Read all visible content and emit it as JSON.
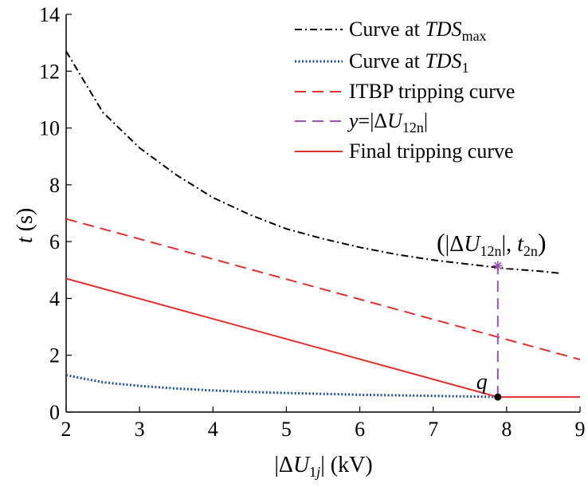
{
  "chart_data": {
    "type": "line",
    "xlabel": "|ΔU1j| (kV)",
    "ylabel": "t (s)",
    "xlim": [
      2,
      9
    ],
    "ylim": [
      0,
      14
    ],
    "x_ticks": [
      "2",
      "3",
      "4",
      "5",
      "6",
      "7",
      "8",
      "9"
    ],
    "y_ticks": [
      "0",
      "2",
      "4",
      "6",
      "8",
      "10",
      "12",
      "14"
    ],
    "grid": false,
    "legend_position": "top-right",
    "series": [
      {
        "name": "Curve at TDSmax",
        "style": "dash-dot",
        "color": "#000000",
        "x": [
          2.0,
          2.5,
          3.0,
          3.5,
          4.0,
          4.5,
          5.0,
          5.5,
          6.0,
          6.5,
          7.0,
          7.5,
          8.0,
          8.5,
          8.75
        ],
        "y": [
          12.7,
          10.55,
          9.3,
          8.35,
          7.55,
          6.95,
          6.45,
          6.1,
          5.8,
          5.55,
          5.35,
          5.2,
          5.05,
          4.95,
          4.88
        ]
      },
      {
        "name": "Curve at TDS1",
        "style": "dotted",
        "color": "#1f4e9c",
        "x": [
          2.0,
          2.5,
          3.0,
          3.5,
          4.0,
          4.5,
          5.0,
          5.5,
          6.0,
          6.5,
          7.0,
          7.5,
          7.9
        ],
        "y": [
          1.3,
          1.05,
          0.92,
          0.83,
          0.76,
          0.71,
          0.67,
          0.64,
          0.61,
          0.59,
          0.57,
          0.55,
          0.53
        ]
      },
      {
        "name": "ITBP tripping curve",
        "style": "dashed",
        "color": "#e0312f",
        "x": [
          2.0,
          9.0
        ],
        "y": [
          6.8,
          1.85
        ]
      },
      {
        "name": "y=|ΔU12n|",
        "style": "dashed",
        "color": "#9b51b5",
        "x": [
          7.88,
          7.88
        ],
        "y": [
          0.53,
          5.15
        ]
      },
      {
        "name": "Final tripping curve",
        "style": "solid",
        "color": "#e0312f",
        "x": [
          2.0,
          7.88,
          9.0
        ],
        "y": [
          4.7,
          0.53,
          0.53
        ]
      }
    ],
    "points": [
      {
        "label": "q",
        "x": 7.88,
        "y": 0.53
      },
      {
        "label": "(|ΔU12n|, t2n)",
        "x": 7.88,
        "y": 5.15
      }
    ]
  }
}
